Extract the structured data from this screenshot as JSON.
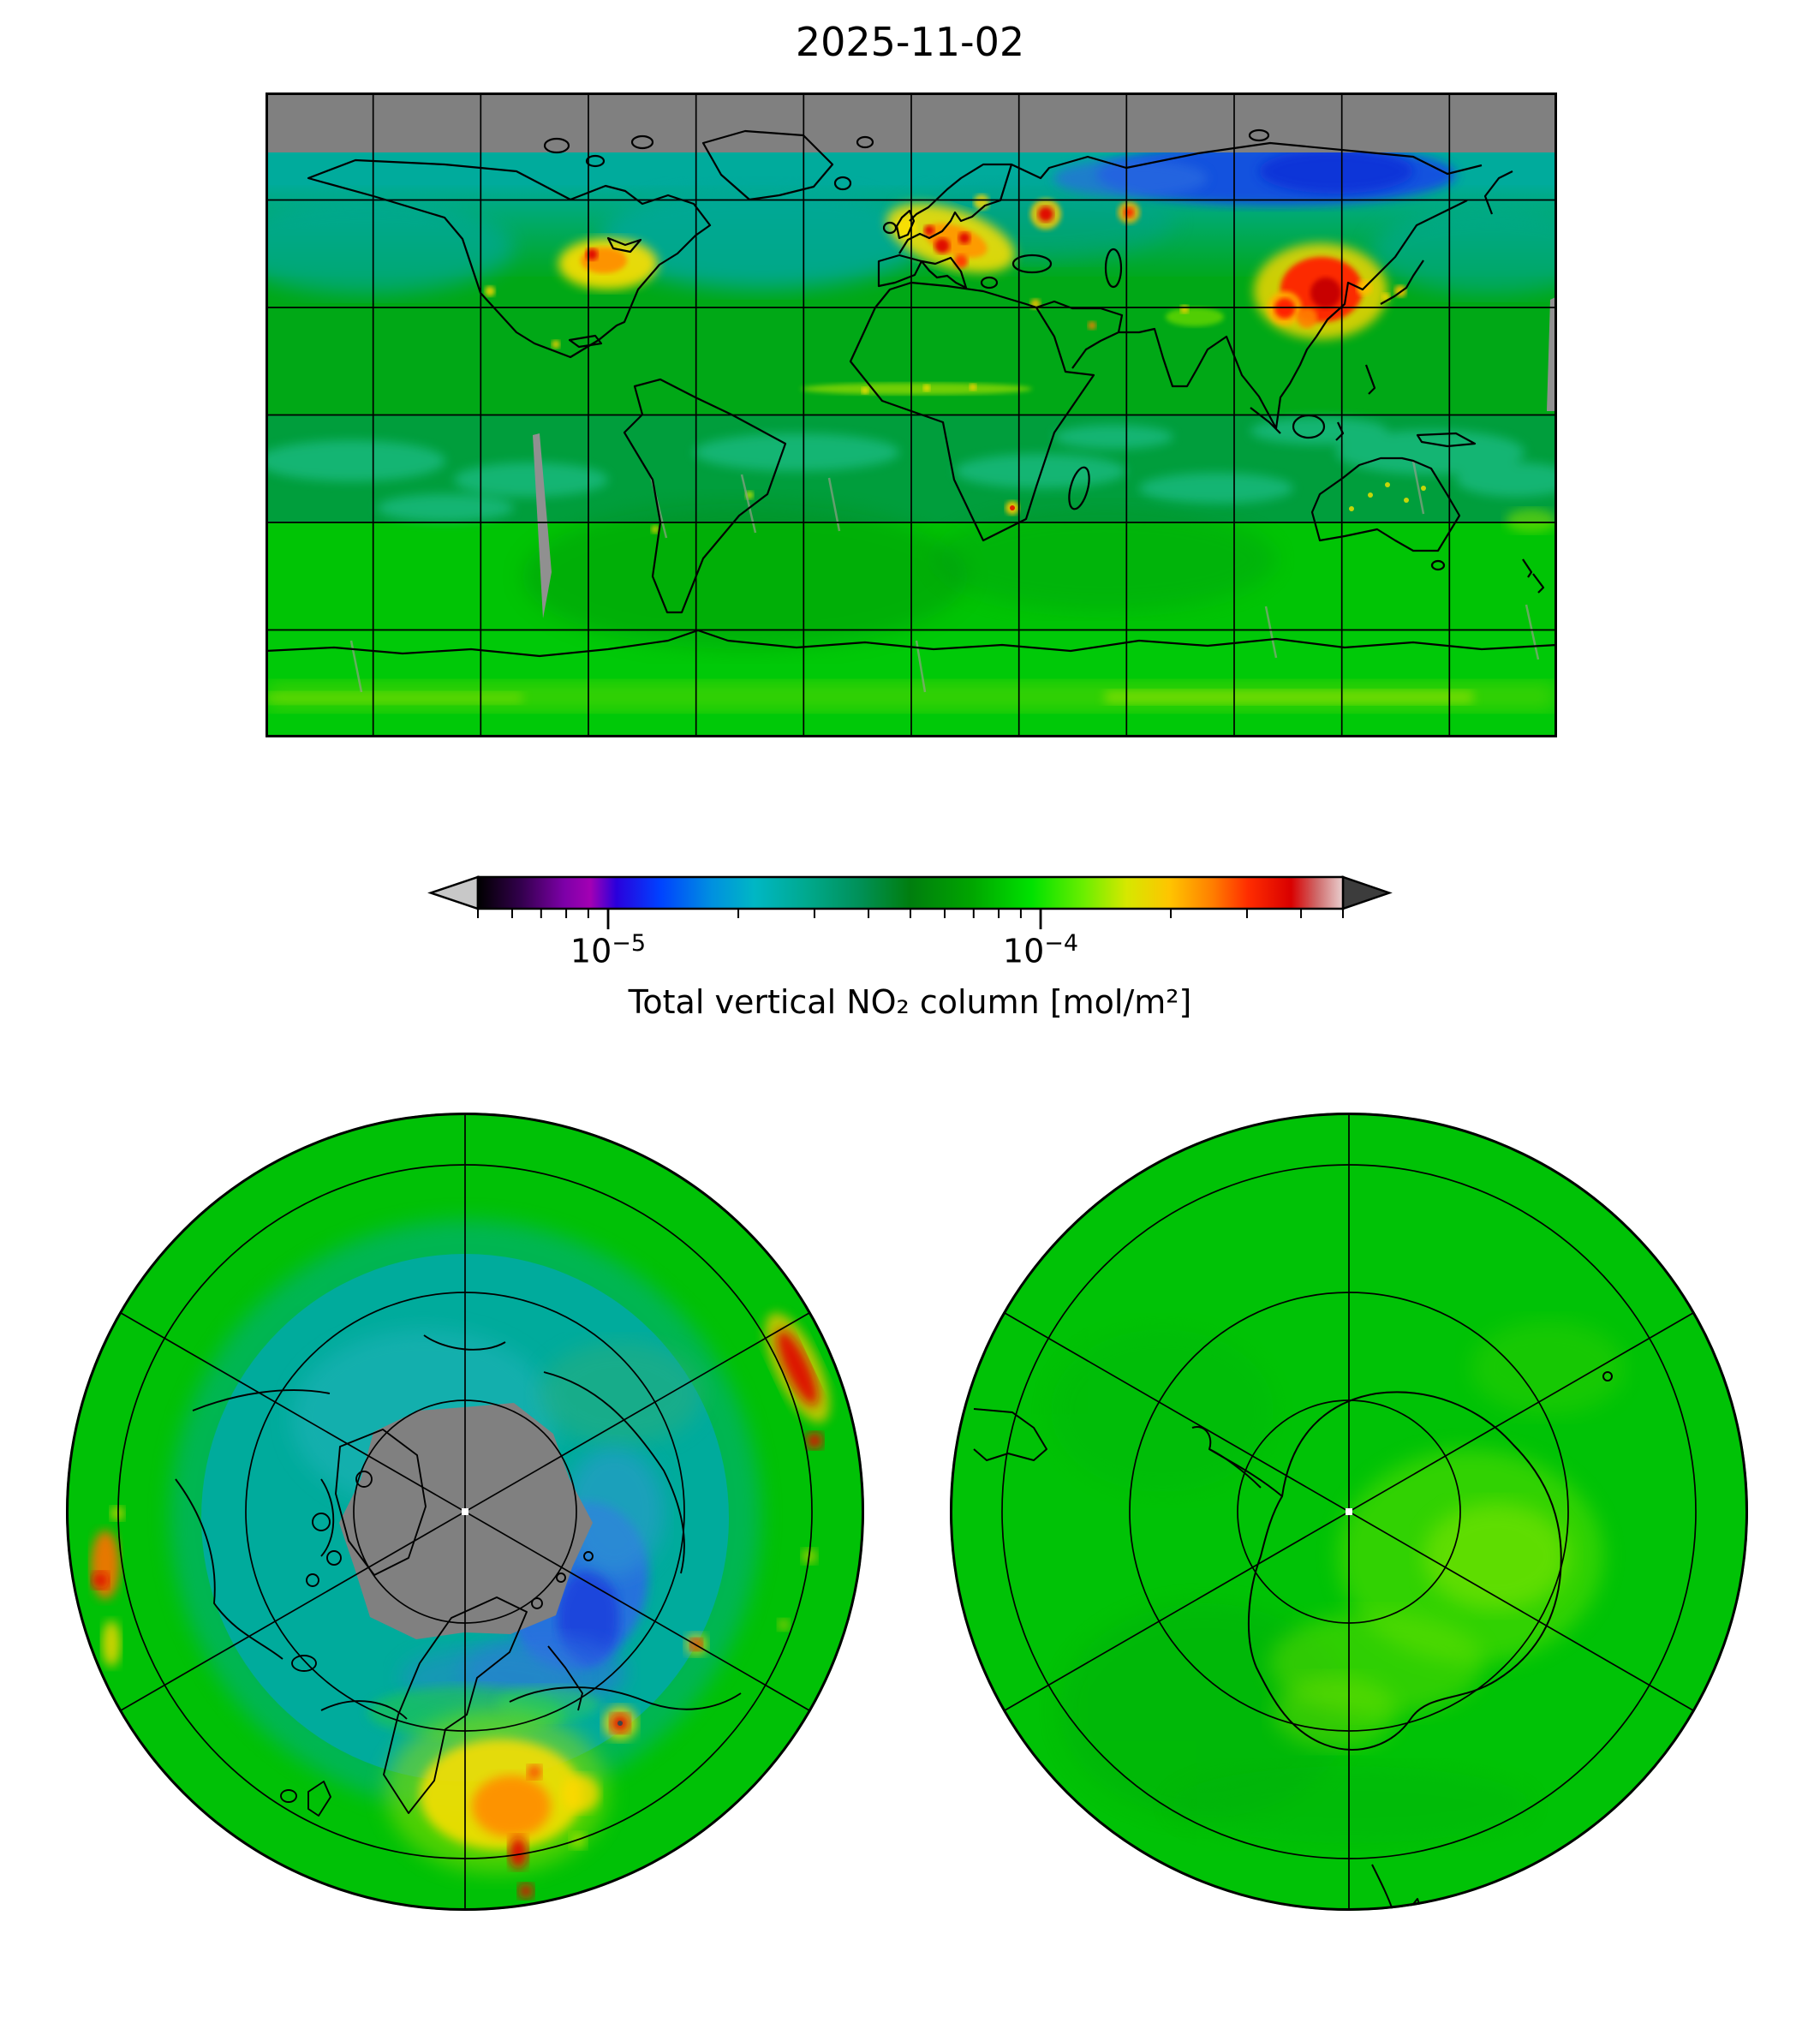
{
  "figure": {
    "title": "2025-11-02",
    "colorbar": {
      "label": "Total vertical NO₂ column [mol/m²]",
      "orientation": "horizontal",
      "scale": "log",
      "extend": "both",
      "under_arrow_color": "#c8c8c8",
      "over_arrow_color": "#3c3c3c",
      "ticks": [
        {
          "value": 1e-05,
          "base": "10",
          "exponent": "−5"
        },
        {
          "value": 0.0001,
          "base": "10",
          "exponent": "−4"
        }
      ]
    }
  },
  "chart_data": {
    "type": "heatmap",
    "title": "2025-11-02",
    "variable": "Total vertical NO₂ column",
    "units": "mol/m²",
    "colorbar_label": "Total vertical NO₂ column [mol/m²]",
    "scale": {
      "type": "log",
      "vmin": 5e-06,
      "vmax": 0.0005,
      "major_ticks": [
        1e-05,
        0.0001
      ],
      "major_tick_labels": [
        "10⁻⁵",
        "10⁻⁴"
      ],
      "minor_ticks": [
        5e-06,
        6e-06,
        7e-06,
        8e-06,
        9e-06,
        2e-05,
        3e-05,
        4e-05,
        5e-05,
        6e-05,
        7e-05,
        8e-05,
        9e-05,
        0.0002,
        0.0003,
        0.0004,
        0.0005
      ]
    },
    "colormap": {
      "style": "nipy_spectral-like",
      "no_data_color": "#808080",
      "stops": [
        {
          "pos": 0.0,
          "color": "#000000"
        },
        {
          "pos": 0.05,
          "color": "#33004d"
        },
        {
          "pos": 0.1,
          "color": "#7d00a8"
        },
        {
          "pos": 0.13,
          "color": "#a300b4"
        },
        {
          "pos": 0.16,
          "color": "#2a00dc"
        },
        {
          "pos": 0.21,
          "color": "#0041ff"
        },
        {
          "pos": 0.27,
          "color": "#0090e0"
        },
        {
          "pos": 0.32,
          "color": "#00b7c4"
        },
        {
          "pos": 0.38,
          "color": "#00a98e"
        },
        {
          "pos": 0.44,
          "color": "#009159"
        },
        {
          "pos": 0.5,
          "color": "#007e0e"
        },
        {
          "pos": 0.57,
          "color": "#00a500"
        },
        {
          "pos": 0.64,
          "color": "#00e200"
        },
        {
          "pos": 0.7,
          "color": "#6aee00"
        },
        {
          "pos": 0.75,
          "color": "#d6e800"
        },
        {
          "pos": 0.8,
          "color": "#ffc400"
        },
        {
          "pos": 0.85,
          "color": "#ff7d00"
        },
        {
          "pos": 0.89,
          "color": "#ff2d00"
        },
        {
          "pos": 0.94,
          "color": "#d90000"
        },
        {
          "pos": 0.97,
          "color": "#cf6a6a"
        },
        {
          "pos": 1.0,
          "color": "#e9cfcf"
        }
      ]
    },
    "panels": [
      {
        "id": "global",
        "projection": "equirectangular (plate carrée)",
        "lon_range": [
          -180,
          180
        ],
        "lat_range": [
          -90,
          90
        ],
        "graticule": {
          "lon_step_deg": 30,
          "lat_step_deg": 30
        },
        "no_data_regions": [
          {
            "region": "poleward of ~73°N (polar night)",
            "color": "#808080"
          },
          {
            "region": "narrow orbit-gap sliver west of South America (~100°W, 10°N–10°S)",
            "color": "#909090"
          },
          {
            "region": "thin sliver at eastern map edge near 25°N",
            "color": "#909090"
          }
        ],
        "features": [
          {
            "region": "Eastern China (North China Plain)",
            "level": "very high",
            "approx_value": "3e-4 to 5e-4",
            "color": "red / dark red"
          },
          {
            "region": "Sichuan Basin, China",
            "level": "very high spot",
            "approx_value": "~3e-4",
            "color": "red"
          },
          {
            "region": "Central Europe (Benelux / Germany / Poland / Po Valley)",
            "level": "high",
            "approx_value": "1.5e-4 to 3e-4",
            "color": "yellow-orange with red cores"
          },
          {
            "region": "Eastern United States / Midwest",
            "level": "high",
            "approx_value": "1.5e-4 to 2.5e-4",
            "color": "yellow-orange"
          },
          {
            "region": "Moscow region",
            "level": "high spot",
            "approx_value": "~2.5e-4",
            "color": "red dot"
          },
          {
            "region": "Ural industrial area",
            "level": "elevated spot",
            "approx_value": "~2e-4",
            "color": "orange-red dot"
          },
          {
            "region": "Seoul / Japan coast",
            "level": "moderately high",
            "approx_value": "~1.5e-4",
            "color": "yellow"
          },
          {
            "region": "Sahel / West-African burning belt (~10°N)",
            "level": "elevated streak",
            "approx_value": "~1.2e-4",
            "color": "yellow-green"
          },
          {
            "region": "Highveld, South Africa",
            "level": "elevated spot",
            "approx_value": "~1.5e-4",
            "color": "yellow with red core"
          },
          {
            "region": "Australian interior fire speckles",
            "level": "small elevated dots",
            "approx_value": "~1.2e-4",
            "color": "yellow dots"
          },
          {
            "region": "sub-Arctic ocean band 60–73°N",
            "level": "low",
            "approx_value": "1e-5 to 2e-5",
            "color": "teal/cyan"
          },
          {
            "region": "North-Siberian coast",
            "level": "very low",
            "approx_value": "<1e-5",
            "color": "deep blue"
          },
          {
            "region": "tropical oceans",
            "level": "moderate-low",
            "approx_value": "2e-5 to 4e-5",
            "color": "green with cyan speckle"
          },
          {
            "region": "southern hemisphere background",
            "level": "moderate",
            "approx_value": "6e-5 to 1e-4",
            "color": "bright green"
          },
          {
            "region": "Antarctic coastal band ~65°S",
            "level": "slightly elevated",
            "approx_value": "~1e-4",
            "color": "yellow-green band"
          }
        ]
      },
      {
        "id": "north-polar",
        "projection": "north polar azimuthal",
        "edge_latitude_deg": 30,
        "graticule": {
          "meridian_step_deg": 60,
          "parallels_deg": [
            45,
            60,
            75
          ]
        },
        "no_data_regions": [
          {
            "region": "ragged polar-night cap poleward of ~73°N",
            "color": "#808080"
          }
        ],
        "features": [
          {
            "region": "central Arctic cap",
            "level": "no data",
            "color": "gray"
          },
          {
            "region": "Kara / Laptev sea sector (right of cap)",
            "level": "very low",
            "approx_value": "<1e-5",
            "color": "blue"
          },
          {
            "region": "sub-Arctic annulus",
            "level": "low",
            "approx_value": "1e-5 to 2e-5",
            "color": "teal"
          },
          {
            "region": "Central Europe (bottom of disc)",
            "level": "high",
            "color": "yellow-orange with red streaks"
          },
          {
            "region": "East Asia (upper-right edge)",
            "level": "high",
            "color": "red streak"
          },
          {
            "region": "Eastern North America (left edge)",
            "level": "high",
            "color": "orange-red patches"
          },
          {
            "region": "Ural spot (right of centre)",
            "level": "elevated dot",
            "color": "red"
          },
          {
            "region": "mid-latitude ring",
            "level": "moderate",
            "color": "green"
          }
        ]
      },
      {
        "id": "south-polar",
        "projection": "south polar azimuthal",
        "edge_latitude_deg": -30,
        "graticule": {
          "meridian_step_deg": 60,
          "parallels_deg": [
            -45,
            -60,
            -75
          ]
        },
        "no_data_regions": [],
        "features": [
          {
            "region": "entire disc",
            "level": "moderate background",
            "approx_value": "6e-5 to 1e-4",
            "color": "green"
          },
          {
            "region": "East Antarctica near pole",
            "level": "slightly elevated",
            "approx_value": "~1.2e-4",
            "color": "bright yellow-green patch"
          },
          {
            "region": "Antarctica, Antarctic Peninsula, Tierra del Fuego, New Zealand",
            "level": "coastlines only",
            "color": "black outlines"
          }
        ]
      }
    ],
    "layout": {
      "grid": "one global map on top, shared horizontal colorbar, two polar discs below",
      "legend_position": "horizontal colorbar between global map and polar discs"
    }
  }
}
